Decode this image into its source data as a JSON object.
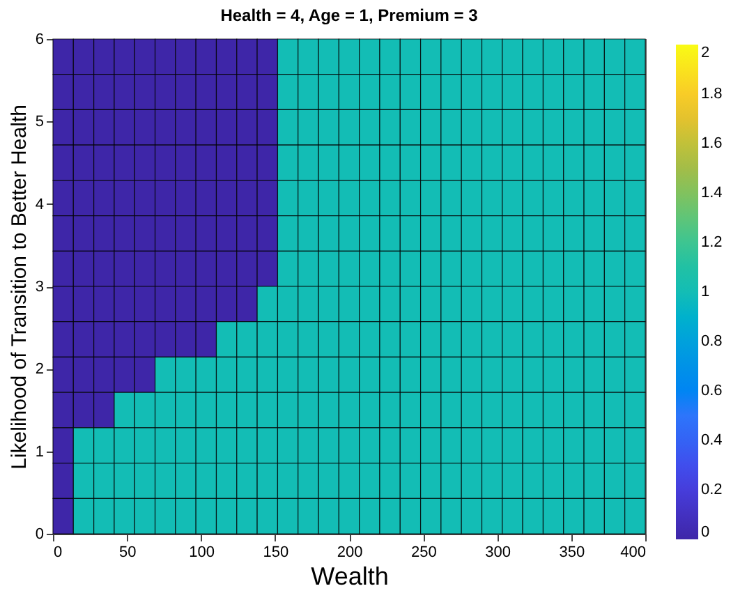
{
  "chart_data": {
    "type": "heatmap",
    "title": "Health = 4,   Age = 1,   Premium = 3",
    "xlabel": "Wealth",
    "ylabel": "Likelihood of Transition to Better Health",
    "xlim": [
      0,
      400
    ],
    "xticks": [
      0,
      50,
      100,
      150,
      200,
      250,
      300,
      350,
      400
    ],
    "ylim": [
      0,
      6
    ],
    "yticks": [
      0,
      1,
      2,
      3,
      4,
      5,
      6
    ],
    "clim": [
      0,
      2
    ],
    "cticks": [
      0,
      0.2,
      0.4,
      0.6,
      0.8,
      1,
      1.2,
      1.4,
      1.6,
      1.8,
      2
    ],
    "cells": [
      [
        0,
        0,
        0,
        0,
        0,
        0,
        0,
        0,
        0,
        0,
        0,
        1,
        1,
        1,
        1,
        1,
        1,
        1,
        1,
        1,
        1,
        1,
        1,
        1,
        1,
        1,
        1,
        1,
        1
      ],
      [
        0,
        0,
        0,
        0,
        0,
        0,
        0,
        0,
        0,
        0,
        0,
        1,
        1,
        1,
        1,
        1,
        1,
        1,
        1,
        1,
        1,
        1,
        1,
        1,
        1,
        1,
        1,
        1,
        1
      ],
      [
        0,
        0,
        0,
        0,
        0,
        0,
        0,
        0,
        0,
        0,
        0,
        1,
        1,
        1,
        1,
        1,
        1,
        1,
        1,
        1,
        1,
        1,
        1,
        1,
        1,
        1,
        1,
        1,
        1
      ],
      [
        0,
        0,
        0,
        0,
        0,
        0,
        0,
        0,
        0,
        0,
        0,
        1,
        1,
        1,
        1,
        1,
        1,
        1,
        1,
        1,
        1,
        1,
        1,
        1,
        1,
        1,
        1,
        1,
        1
      ],
      [
        0,
        0,
        0,
        0,
        0,
        0,
        0,
        0,
        0,
        0,
        0,
        1,
        1,
        1,
        1,
        1,
        1,
        1,
        1,
        1,
        1,
        1,
        1,
        1,
        1,
        1,
        1,
        1,
        1
      ],
      [
        0,
        0,
        0,
        0,
        0,
        0,
        0,
        0,
        0,
        0,
        0,
        1,
        1,
        1,
        1,
        1,
        1,
        1,
        1,
        1,
        1,
        1,
        1,
        1,
        1,
        1,
        1,
        1,
        1
      ],
      [
        0,
        0,
        0,
        0,
        0,
        0,
        0,
        0,
        0,
        0,
        0,
        1,
        1,
        1,
        1,
        1,
        1,
        1,
        1,
        1,
        1,
        1,
        1,
        1,
        1,
        1,
        1,
        1,
        1
      ],
      [
        0,
        0,
        0,
        0,
        0,
        0,
        0,
        0,
        0,
        0,
        1,
        1,
        1,
        1,
        1,
        1,
        1,
        1,
        1,
        1,
        1,
        1,
        1,
        1,
        1,
        1,
        1,
        1,
        1
      ],
      [
        0,
        0,
        0,
        0,
        0,
        0,
        0,
        0,
        1,
        1,
        1,
        1,
        1,
        1,
        1,
        1,
        1,
        1,
        1,
        1,
        1,
        1,
        1,
        1,
        1,
        1,
        1,
        1,
        1
      ],
      [
        0,
        0,
        0,
        0,
        0,
        1,
        1,
        1,
        1,
        1,
        1,
        1,
        1,
        1,
        1,
        1,
        1,
        1,
        1,
        1,
        1,
        1,
        1,
        1,
        1,
        1,
        1,
        1,
        1
      ],
      [
        0,
        0,
        0,
        1,
        1,
        1,
        1,
        1,
        1,
        1,
        1,
        1,
        1,
        1,
        1,
        1,
        1,
        1,
        1,
        1,
        1,
        1,
        1,
        1,
        1,
        1,
        1,
        1,
        1
      ],
      [
        0,
        1,
        1,
        1,
        1,
        1,
        1,
        1,
        1,
        1,
        1,
        1,
        1,
        1,
        1,
        1,
        1,
        1,
        1,
        1,
        1,
        1,
        1,
        1,
        1,
        1,
        1,
        1,
        1
      ],
      [
        0,
        1,
        1,
        1,
        1,
        1,
        1,
        1,
        1,
        1,
        1,
        1,
        1,
        1,
        1,
        1,
        1,
        1,
        1,
        1,
        1,
        1,
        1,
        1,
        1,
        1,
        1,
        1,
        1
      ],
      [
        0,
        1,
        1,
        1,
        1,
        1,
        1,
        1,
        1,
        1,
        1,
        1,
        1,
        1,
        1,
        1,
        1,
        1,
        1,
        1,
        1,
        1,
        1,
        1,
        1,
        1,
        1,
        1,
        1
      ]
    ]
  }
}
